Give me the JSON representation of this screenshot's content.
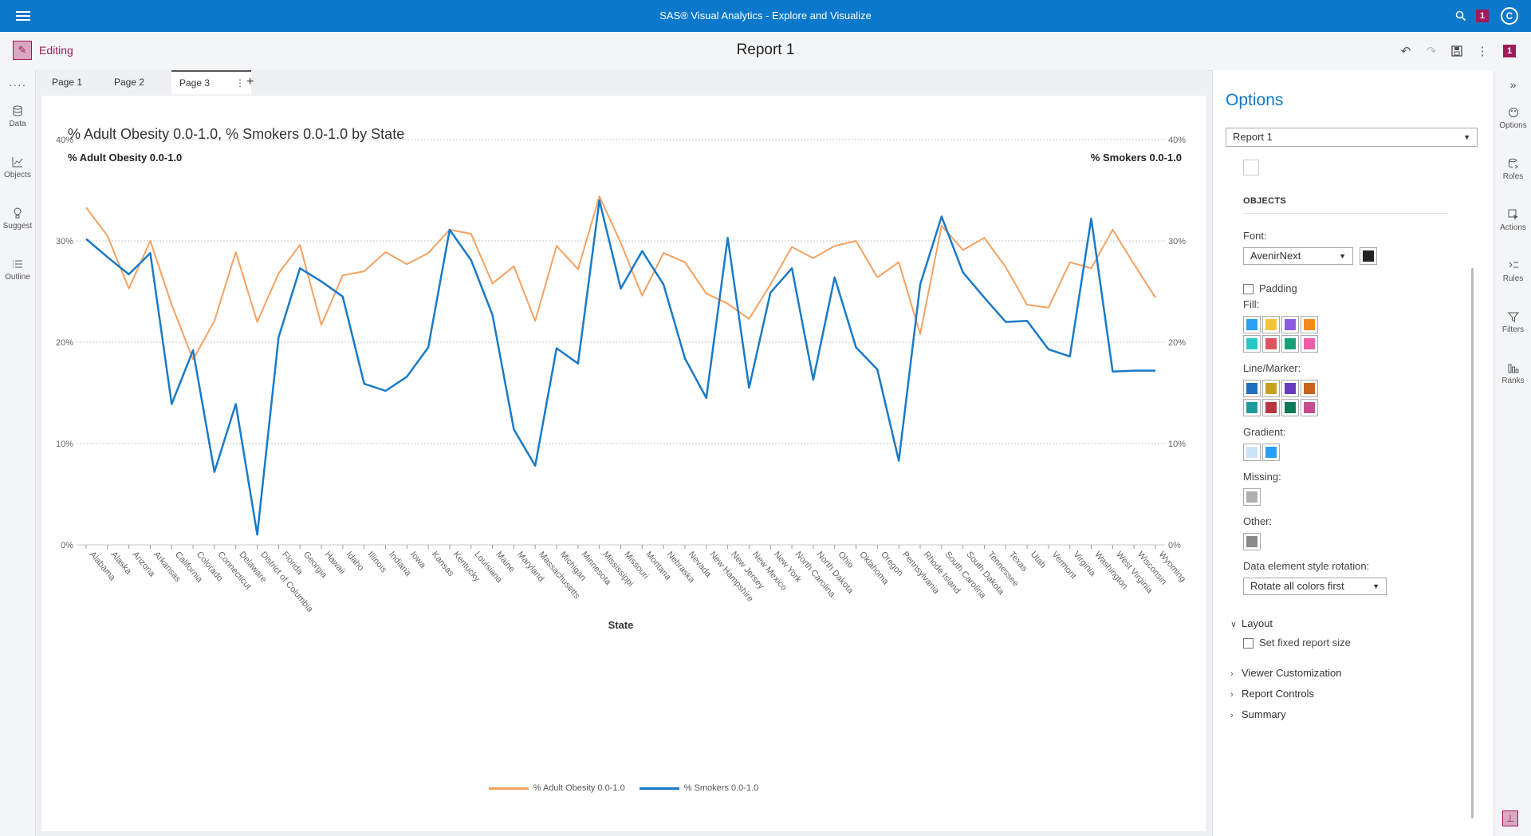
{
  "app": {
    "title": "SAS® Visual Analytics - Explore and Visualize",
    "notification_count": "1",
    "avatar_initial": "C"
  },
  "toolbar": {
    "mode_label": "Editing",
    "report_title": "Report 1",
    "badge": "1"
  },
  "left_nav": [
    {
      "label": "····",
      "icon": "more-icon"
    },
    {
      "label": "Data",
      "icon": "data-icon"
    },
    {
      "label": "Objects",
      "icon": "objects-icon"
    },
    {
      "label": "Suggest",
      "icon": "suggest-icon"
    },
    {
      "label": "Outline",
      "icon": "outline-icon"
    }
  ],
  "tabs": [
    {
      "label": "Page 1"
    },
    {
      "label": "Page 2"
    },
    {
      "label": "Page 3",
      "active": true
    }
  ],
  "tab_add": "+",
  "chart": {
    "title": "% Adult Obesity 0.0-1.0, % Smokers 0.0-1.0 by State",
    "left_axis_title": "% Adult Obesity 0.0-1.0",
    "right_axis_title": "% Smokers 0.0-1.0",
    "x_axis_title": "State"
  },
  "chart_data": {
    "type": "line",
    "title": "% Adult Obesity 0.0-1.0, % Smokers 0.0-1.0 by State",
    "xlabel": "State",
    "ylabel": "% Adult Obesity 0.0-1.0",
    "y2label": "% Smokers 0.0-1.0",
    "ylim": [
      0,
      40
    ],
    "y_ticks": [
      "0%",
      "10%",
      "20%",
      "30%",
      "40%"
    ],
    "grid": true,
    "legend": "bottom",
    "categories": [
      "Alabama",
      "Alaska",
      "Arizona",
      "Arkansas",
      "California",
      "Colorado",
      "Connecticut",
      "Delaware",
      "District of Columbia",
      "Florida",
      "Georgia",
      "Hawaii",
      "Idaho",
      "Illinois",
      "Indiana",
      "Iowa",
      "Kansas",
      "Kentucky",
      "Louisiana",
      "Maine",
      "Maryland",
      "Massachusetts",
      "Michigan",
      "Minnesota",
      "Mississippi",
      "Missouri",
      "Montana",
      "Nebraska",
      "Nevada",
      "New Hampshire",
      "New Jersey",
      "New Mexico",
      "New York",
      "North Carolina",
      "North Dakota",
      "Ohio",
      "Oklahoma",
      "Oregon",
      "Pennsylvania",
      "Rhode Island",
      "South Carolina",
      "South Dakota",
      "Tennessee",
      "Texas",
      "Utah",
      "Vermont",
      "Virginia",
      "Washington",
      "West Virginia",
      "Wisconsin",
      "Wyoming"
    ],
    "series": [
      {
        "name": "% Adult Obesity 0.0-1.0",
        "color": "#f4a261",
        "values": [
          33.3,
          30.5,
          25.3,
          30.0,
          23.7,
          18.3,
          22.1,
          28.9,
          22.0,
          26.8,
          29.6,
          21.7,
          26.6,
          27.0,
          28.9,
          27.7,
          28.8,
          31.1,
          30.7,
          25.8,
          27.5,
          22.1,
          29.5,
          27.2,
          34.4,
          29.8,
          24.6,
          28.8,
          27.9,
          24.8,
          23.8,
          22.3,
          25.7,
          29.4,
          28.3,
          29.5,
          30.0,
          26.4,
          27.9,
          20.8,
          31.5,
          29.1,
          30.3,
          27.4,
          23.7,
          23.4,
          27.9,
          27.3,
          31.1,
          27.7,
          24.4
        ]
      },
      {
        "name": "% Smokers 0.0-1.0",
        "color": "#1a7ac7",
        "values": [
          30.2,
          28.4,
          26.7,
          28.8,
          13.9,
          19.2,
          7.2,
          13.9,
          1.0,
          20.5,
          27.3,
          26.0,
          24.5,
          15.9,
          15.2,
          16.6,
          19.5,
          31.1,
          28.1,
          22.7,
          11.4,
          7.8,
          19.4,
          17.9,
          34.0,
          25.3,
          29.0,
          25.7,
          18.4,
          14.5,
          30.3,
          15.5,
          24.9,
          27.3,
          16.3,
          26.4,
          19.5,
          17.3,
          8.3,
          25.7,
          32.4,
          26.9,
          24.4,
          22.0,
          22.1,
          19.3,
          18.6,
          32.2,
          17.1,
          17.2,
          17.2
        ]
      }
    ]
  },
  "options": {
    "title": "Options",
    "object_select": "Report 1",
    "section_objects": "OBJECTS",
    "font_label": "Font:",
    "font_value": "AvenirNext",
    "padding_label": "Padding",
    "fill_label": "Fill:",
    "fill_colors": [
      "#2b9ff2",
      "#f5c33b",
      "#8b5ce0",
      "#f28a1e",
      "#28c7c7",
      "#e05260",
      "#15a07a",
      "#ef5ba8"
    ],
    "line_label": "Line/Marker:",
    "line_colors": [
      "#1f6fbf",
      "#c9a020",
      "#6a3cc0",
      "#c6641a",
      "#1d9a9a",
      "#b8353f",
      "#0e7a58",
      "#c94a8f"
    ],
    "gradient_label": "Gradient:",
    "gradient_colors": [
      "#cde4f7",
      "#2b9ff2"
    ],
    "missing_label": "Missing:",
    "missing_color": "#b0b0b0",
    "other_label": "Other:",
    "other_color": "#8a8a8a",
    "rotation_label": "Data element style rotation:",
    "rotation_value": "Rotate all colors first",
    "layout_label": "Layout",
    "fixed_size_label": "Set fixed report size",
    "viewer_label": "Viewer Customization",
    "controls_label": "Report Controls",
    "summary_label": "Summary"
  },
  "right_nav": [
    {
      "label": "Options",
      "icon": "palette-icon"
    },
    {
      "label": "Roles",
      "icon": "roles-icon"
    },
    {
      "label": "Actions",
      "icon": "actions-icon"
    },
    {
      "label": "Rules",
      "icon": "rules-icon"
    },
    {
      "label": "Filters",
      "icon": "filter-icon"
    },
    {
      "label": "Ranks",
      "icon": "ranks-icon"
    }
  ]
}
